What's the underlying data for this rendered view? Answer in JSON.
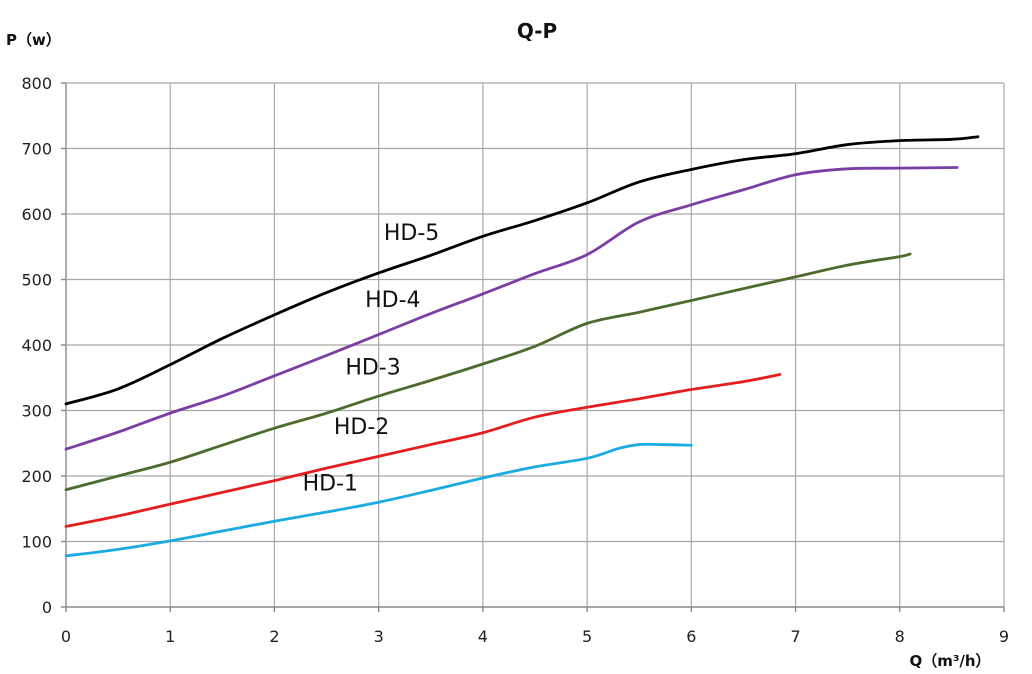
{
  "chart_data": {
    "type": "line",
    "title": "Q-P",
    "xlabel": "Q（m³/h）",
    "ylabel": "P（w）",
    "xlim": [
      0,
      9
    ],
    "ylim": [
      0,
      800
    ],
    "xticks": [
      "0",
      "1",
      "2",
      "3",
      "4",
      "5",
      "6",
      "7",
      "8",
      "9"
    ],
    "yticks": [
      "0",
      "100",
      "200",
      "300",
      "400",
      "500",
      "600",
      "700",
      "800"
    ],
    "grid": true,
    "series": [
      {
        "name": "HD-1",
        "color": "#1AABE2",
        "x": [
          0,
          0.5,
          1,
          1.5,
          2,
          2.5,
          3,
          3.5,
          4,
          4.5,
          5,
          5.3,
          5.5,
          5.7,
          6
        ],
        "y": [
          78,
          88,
          101,
          116,
          131,
          145,
          160,
          178,
          197,
          214,
          227,
          242,
          248,
          248,
          247
        ]
      },
      {
        "name": "HD-2",
        "color": "#E41E1E",
        "x": [
          0,
          0.5,
          1,
          1.5,
          2,
          2.5,
          3,
          3.5,
          4,
          4.5,
          5,
          5.5,
          6,
          6.5,
          6.85
        ],
        "y": [
          123,
          139,
          157,
          175,
          193,
          212,
          230,
          248,
          266,
          290,
          305,
          318,
          332,
          344,
          355
        ]
      },
      {
        "name": "HD-3",
        "color": "#4E6B2E",
        "x": [
          0,
          0.5,
          1,
          1.5,
          2,
          2.5,
          3,
          3.5,
          4,
          4.5,
          5,
          5.5,
          6,
          6.5,
          7,
          7.5,
          8,
          8.1
        ],
        "y": [
          179,
          200,
          221,
          247,
          273,
          296,
          322,
          346,
          371,
          398,
          433,
          450,
          468,
          486,
          504,
          522,
          535,
          539
        ]
      },
      {
        "name": "HD-4",
        "color": "#7B3FA4",
        "x": [
          0,
          0.5,
          1,
          1.5,
          2,
          2.5,
          3,
          3.5,
          4,
          4.5,
          5,
          5.5,
          6,
          6.5,
          7,
          7.5,
          8,
          8.55
        ],
        "y": [
          241,
          267,
          296,
          322,
          353,
          384,
          416,
          448,
          478,
          509,
          538,
          588,
          614,
          637,
          660,
          669,
          670,
          671
        ]
      },
      {
        "name": "HD-5",
        "color": "#000000",
        "x": [
          0,
          0.5,
          1,
          1.5,
          2,
          2.5,
          3,
          3.5,
          4,
          4.5,
          5,
          5.5,
          6,
          6.5,
          7,
          7.5,
          8,
          8.5,
          8.75
        ],
        "y": [
          310,
          333,
          370,
          410,
          446,
          480,
          510,
          537,
          566,
          590,
          617,
          649,
          668,
          683,
          692,
          706,
          712,
          714,
          718
        ]
      }
    ],
    "annotations": [
      {
        "text": "HD-1",
        "series": "HD-1",
        "x": 2.27,
        "y": 178
      },
      {
        "text": "HD-2",
        "series": "HD-2",
        "x": 2.57,
        "y": 264
      },
      {
        "text": "HD-3",
        "series": "HD-3",
        "x": 2.68,
        "y": 355
      },
      {
        "text": "HD-4",
        "series": "HD-4",
        "x": 2.87,
        "y": 458
      },
      {
        "text": "HD-5",
        "series": "HD-5",
        "x": 3.05,
        "y": 560
      }
    ]
  }
}
